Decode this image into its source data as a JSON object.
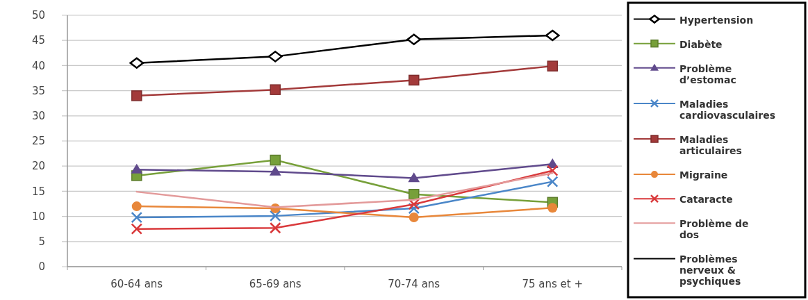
{
  "chart_data": {
    "type": "line",
    "categories": [
      "60-64 ans",
      "65-69 ans",
      "70-74 ans",
      "75 ans et +"
    ],
    "ylim": [
      0,
      50
    ],
    "yticks": [
      0,
      5,
      10,
      15,
      20,
      25,
      30,
      35,
      40,
      45,
      50
    ],
    "grid": "y",
    "legend": "right",
    "series": [
      {
        "name": "Hypertension",
        "color": "#000000",
        "marker": "diamond",
        "values": [
          40.5,
          41.8,
          45.2,
          46.0
        ]
      },
      {
        "name": "Diabète",
        "color": "#77a03a",
        "marker": "square",
        "values": [
          18.1,
          21.2,
          14.4,
          12.8
        ]
      },
      {
        "name": "Problème d’estomac",
        "color": "#604a8c",
        "marker": "triangle",
        "values": [
          19.3,
          18.9,
          17.6,
          20.4
        ]
      },
      {
        "name": "Maladies cardiovasculaires",
        "color": "#4a86c8",
        "marker": "cross",
        "values": [
          9.8,
          10.1,
          11.6,
          16.9
        ]
      },
      {
        "name": "Maladies articulaires",
        "color": "#a33a3a",
        "marker": "square",
        "values": [
          34.0,
          35.2,
          37.1,
          39.9
        ]
      },
      {
        "name": "Migraine",
        "color": "#e8873a",
        "marker": "circle",
        "values": [
          12.0,
          11.6,
          9.8,
          11.7
        ]
      },
      {
        "name": "Cataracte",
        "color": "#d9393b",
        "marker": "cross",
        "values": [
          7.5,
          7.7,
          12.4,
          19.1
        ]
      },
      {
        "name": "Problème de dos",
        "color": "#e39a9a",
        "marker": "none",
        "values": [
          14.9,
          11.8,
          13.3,
          18.6
        ]
      },
      {
        "name": "Problèmes nerveux & psychiques",
        "color": "#000000",
        "marker": "none",
        "values": [
          null,
          null,
          null,
          null
        ]
      }
    ]
  }
}
